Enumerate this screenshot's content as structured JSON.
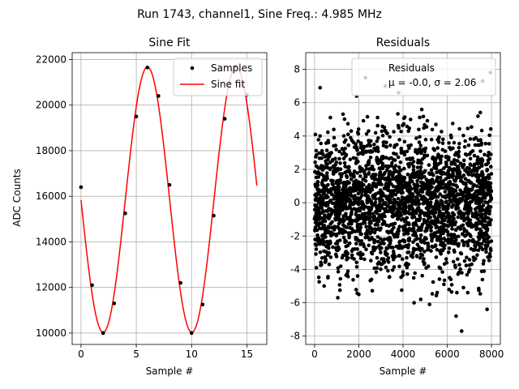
{
  "suptitle": "Run 1743, channel1, Sine Freq.: 4.985 MHz",
  "chart_data": [
    {
      "type": "line",
      "title": "Sine Fit",
      "xlabel": "Sample #",
      "ylabel": "ADC Counts",
      "xlim": [
        -0.8,
        16.8
      ],
      "ylim": [
        9500,
        22300
      ],
      "xticks": [
        0,
        5,
        10,
        15
      ],
      "yticks": [
        10000,
        12000,
        14000,
        16000,
        18000,
        20000,
        22000
      ],
      "grid": true,
      "legend": {
        "placement": "top-right",
        "entries": [
          "Samples",
          "Sine fit"
        ]
      },
      "series": [
        {
          "name": "Samples",
          "style": "markers",
          "color": "#000000",
          "x": [
            0,
            1,
            2,
            3,
            4,
            5,
            6,
            7,
            8,
            9,
            10,
            11,
            12,
            13,
            14,
            15
          ],
          "y": [
            16400,
            12100,
            10000,
            11300,
            15250,
            19500,
            21650,
            20400,
            16500,
            12200,
            10000,
            11250,
            15150,
            19400,
            21700,
            20450
          ]
        },
        {
          "name": "Sine fit",
          "style": "line",
          "color": "#ff0000",
          "model": {
            "offset": 15850,
            "amplitude": 5820,
            "period_samples": 8.02,
            "phase_rad": 0.09,
            "x_range": [
              0,
              15.9
            ]
          }
        }
      ]
    },
    {
      "type": "scatter",
      "title": "Residuals",
      "xlabel": "Sample #",
      "ylabel": "",
      "xlim": [
        -400,
        8400
      ],
      "ylim": [
        -8.5,
        9
      ],
      "xticks": [
        0,
        2000,
        4000,
        6000,
        8000
      ],
      "yticks": [
        -8,
        -6,
        -4,
        -2,
        0,
        2,
        4,
        6,
        8
      ],
      "grid": true,
      "legend": {
        "placement": "top-right",
        "entries": [
          "Residuals",
          "μ = -0.0, σ = 2.06"
        ]
      },
      "series": [
        {
          "name": "Residuals",
          "color": "#000000",
          "n_points": 8000,
          "mean": -0.0,
          "std": 2.06,
          "x_range": [
            0,
            7999
          ],
          "outliers": [
            {
              "x": 250,
              "y": 6.9
            },
            {
              "x": 1050,
              "y": -5.7
            },
            {
              "x": 2300,
              "y": 7.5
            },
            {
              "x": 3200,
              "y": 7.0
            },
            {
              "x": 4500,
              "y": -6.0
            },
            {
              "x": 4800,
              "y": -5.8
            },
            {
              "x": 5200,
              "y": -6.1
            },
            {
              "x": 6400,
              "y": -6.8
            },
            {
              "x": 6650,
              "y": -7.7
            },
            {
              "x": 7800,
              "y": -6.4
            },
            {
              "x": 7950,
              "y": 7.8
            },
            {
              "x": 7600,
              "y": 7.3
            },
            {
              "x": 1900,
              "y": 6.4
            },
            {
              "x": 3800,
              "y": 6.6
            },
            {
              "x": 2000,
              "y": -5.5
            }
          ]
        }
      ]
    }
  ]
}
